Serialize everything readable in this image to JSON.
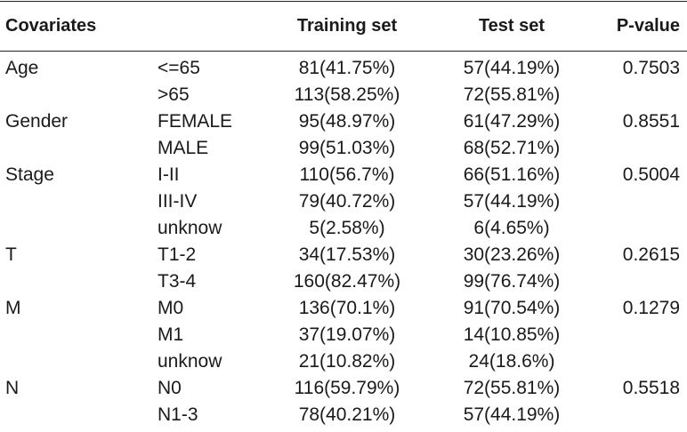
{
  "header": {
    "covariates": "Covariates",
    "training": "Training set",
    "test": "Test set",
    "pvalue": "P-value"
  },
  "rows": [
    {
      "covariate": "Age",
      "level": "<=65",
      "training": "81(41.75%)",
      "test": "57(44.19%)",
      "p": "0.7503"
    },
    {
      "covariate": "",
      "level": ">65",
      "training": "113(58.25%)",
      "test": "72(55.81%)",
      "p": ""
    },
    {
      "covariate": "Gender",
      "level": "FEMALE",
      "training": "95(48.97%)",
      "test": "61(47.29%)",
      "p": "0.8551"
    },
    {
      "covariate": "",
      "level": "MALE",
      "training": "99(51.03%)",
      "test": "68(52.71%)",
      "p": ""
    },
    {
      "covariate": "Stage",
      "level": "I-II",
      "training": "110(56.7%)",
      "test": "66(51.16%)",
      "p": "0.5004"
    },
    {
      "covariate": "",
      "level": "III-IV",
      "training": "79(40.72%)",
      "test": "57(44.19%)",
      "p": ""
    },
    {
      "covariate": "",
      "level": "unknow",
      "training": "5(2.58%)",
      "test": "6(4.65%)",
      "p": ""
    },
    {
      "covariate": "T",
      "level": "T1-2",
      "training": "34(17.53%)",
      "test": "30(23.26%)",
      "p": "0.2615"
    },
    {
      "covariate": "",
      "level": "T3-4",
      "training": "160(82.47%)",
      "test": "99(76.74%)",
      "p": ""
    },
    {
      "covariate": "M",
      "level": "M0",
      "training": "136(70.1%)",
      "test": "91(70.54%)",
      "p": "0.1279"
    },
    {
      "covariate": "",
      "level": "M1",
      "training": "37(19.07%)",
      "test": "14(10.85%)",
      "p": ""
    },
    {
      "covariate": "",
      "level": "unknow",
      "training": "21(10.82%)",
      "test": "24(18.6%)",
      "p": ""
    },
    {
      "covariate": "N",
      "level": "N0",
      "training": "116(59.79%)",
      "test": "72(55.81%)",
      "p": "0.5518"
    },
    {
      "covariate": "",
      "level": "N1-3",
      "training": "78(40.21%)",
      "test": "57(44.19%)",
      "p": ""
    }
  ]
}
